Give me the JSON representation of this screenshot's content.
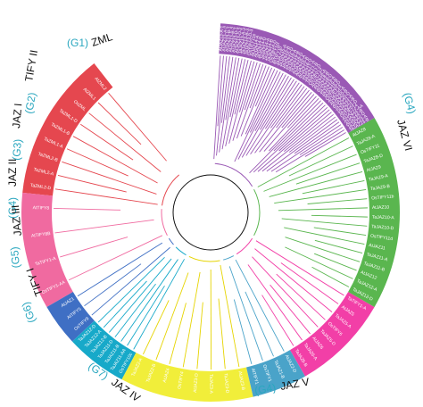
{
  "title": "",
  "colors": {
    "zml": "#e5474f",
    "tify2": "#f06aa0",
    "jaz1": "#3f6fc4",
    "jaz2": "#17a9c9",
    "jaz3": "#f1ee3a",
    "tify1": "#4aa3c9",
    "jaz4": "#f23fa7",
    "jaz5": "#5ab64f",
    "jaz6": "#9a59b5",
    "group_num": "#2aa7bf",
    "group_name": "#111111"
  },
  "groups": [
    {
      "key": "zml",
      "num": "(G1)",
      "name": "ZML"
    },
    {
      "key": "tify2",
      "num": "(G2)",
      "name": "TIFY II"
    },
    {
      "key": "jaz1",
      "num": "(G3)",
      "name": "JAZ I"
    },
    {
      "key": "jaz2",
      "num": "(G4)",
      "name": "JAZ II"
    },
    {
      "key": "jaz3",
      "num": "(G5)",
      "name": "JAZ III"
    },
    {
      "key": "tify1",
      "num": "(G6)",
      "name": "TIFY I"
    },
    {
      "key": "jaz4",
      "num": "(G7)",
      "name": "JAZ IV"
    },
    {
      "key": "jaz5",
      "num": "(G4)",
      "name": "JAZ V"
    },
    {
      "key": "jaz6",
      "num": "(G4)",
      "name": "JAZ VI"
    }
  ],
  "segments": {
    "zml": [
      "TaZML2-D",
      "TaZML2-A",
      "TaZML2-B",
      "TaZML1-A",
      "TaZML1-B",
      "TaZML1-D",
      "OsZML",
      "AtZML1",
      "AtZML2"
    ],
    "tify2": [
      "OsTIFY1-AA",
      "TaTIFY1-A",
      "AtTIFY8B",
      "AtTIFY8"
    ],
    "jaz1": [
      "OsTIFY9",
      "AtTIFY5",
      "AtJAZ1"
    ],
    "jaz2": [
      "OsTIFY10c",
      "TaJAZ11-AA",
      "TaJAZ11-B",
      "TaJAZ11-D",
      "TaJAZ12-B",
      "TaJAZ12-A",
      "TaJAZ12-D"
    ],
    "jaz3": [
      "AtJAZ3-B",
      "TaJAZ3-D",
      "TaJAZ3-A",
      "AtJAZ3-D",
      "OsTIFY4",
      "AtJAZ4",
      "TaJAZ2-B",
      "TaJAZ2-A"
    ],
    "tify1": [
      "AtJAZ2-D",
      "TaJAZ1-B",
      "OsTIFY1",
      "AtTIFY1"
    ],
    "jaz4": [
      "TaTIFY1-A",
      "AtJAZ5",
      "TaJAZ5-A",
      "OsTIFY6",
      "TaJAZ5-D",
      "AtJAZ6",
      "TaJAZ6-A",
      "TaJAZ6-B"
    ],
    "jaz5": [
      "AtJAZ8",
      "TaJAZ8-A",
      "OsTIFY11",
      "TaJAZ8-D",
      "AtJAZ9",
      "TaJAZ9-A",
      "TaJAZ9-B",
      "OsTIFY11b",
      "AtJAZ10",
      "TaJAZ10-A",
      "TaJAZ10-D",
      "OsTIFY11d",
      "AtJAZ11",
      "TaJAZ11-A",
      "TaJAZ11-B",
      "AtJAZ12",
      "TaJAZ12-A",
      "TaJAZ12-D"
    ],
    "jaz6": [
      "AtJAZ13-A-1",
      "AtJAZ13-A-2",
      "AtJAZ13-B-1",
      "AtJAZ13-B-2",
      "AtJAZ13-D-1",
      "AtJAZ13-D-2",
      "TaJAZ13-A-3",
      "TaJAZ13-B-3",
      "TaJAZ13-D-3",
      "OsTIFY11e",
      "AtJAZ14-A",
      "AtJAZ14-B",
      "AtJAZ14-D",
      "TaJAZ14-A",
      "TaJAZ14-B",
      "TaJAZ14-D",
      "OsTIFY11f",
      "AtTIFY10",
      "TaJAZ15-A",
      "TaJAZ15-B",
      "TaJAZ15-D",
      "TaJAZ16-A",
      "TaJAZ16-B",
      "TaJAZ16-D",
      "AtJAZ16-A",
      "AtJAZ16-B",
      "AtJAZ16-D",
      "TaJAZ17-A",
      "TaJAZ17-B",
      "TaJAZ17-D",
      "OsTIFY12",
      "AtJAZ18-A",
      "AtJAZ18-B",
      "AtJAZ18-D",
      "TaJAZ19-A",
      "TaJAZ19-B",
      "TaJAZ19-D",
      "OsTIFY13",
      "AtJAZ20-A",
      "AtJAZ20-B",
      "AtJAZ20-D",
      "TaJAZ21-A",
      "TaJAZ21-B",
      "TaJAZ21-D",
      "OsTIFY14",
      "AtJAZ22-AA",
      "AtJAZ22-B",
      "AtJAZ22-D",
      "TaJAZ23-A",
      "TaJAZ23-B"
    ]
  }
}
